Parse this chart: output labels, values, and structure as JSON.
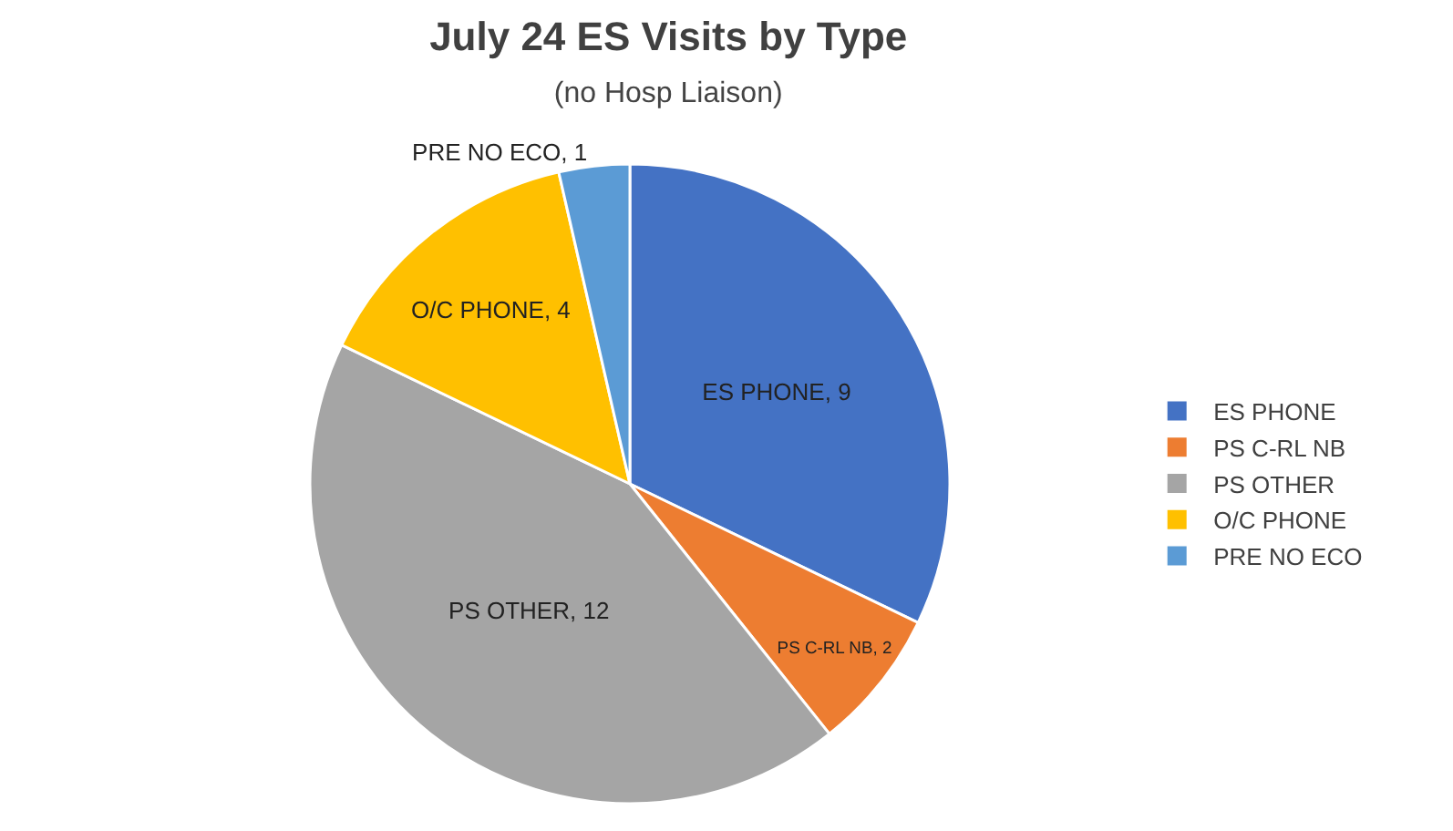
{
  "chart_data": {
    "type": "pie",
    "title": "July 24 ES Visits by Type",
    "subtitle": "(no Hosp Liaison)",
    "categories": [
      "ES PHONE",
      "PS C-RL NB",
      "PS OTHER",
      "O/C PHONE",
      "PRE NO ECO"
    ],
    "values": [
      9,
      2,
      12,
      4,
      1
    ],
    "colors": [
      "#4472c4",
      "#ed7d31",
      "#a5a5a5",
      "#ffc000",
      "#5b9bd5"
    ],
    "value_labels": [
      "ES PHONE, 9",
      "PS C-RL NB, 2",
      "PS OTHER, 12",
      "O/C PHONE, 4",
      "PRE NO ECO, 1"
    ],
    "legend": "right"
  }
}
